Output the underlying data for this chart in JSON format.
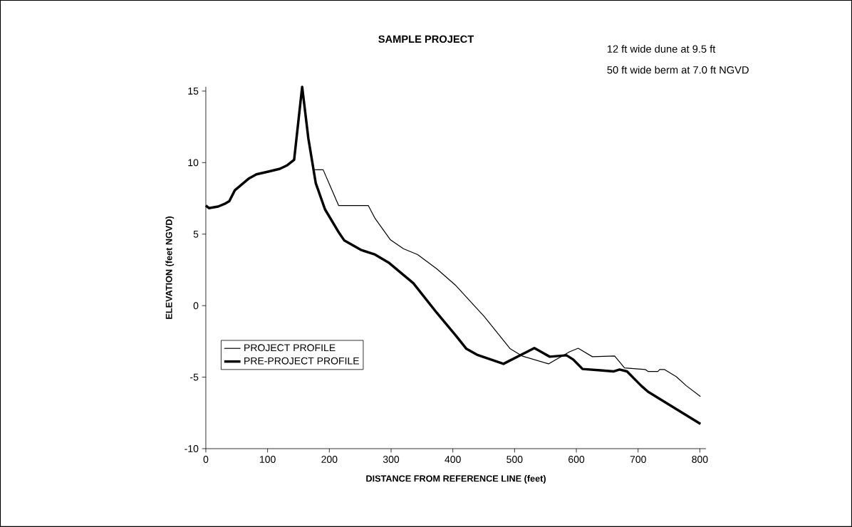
{
  "chart_data": {
    "type": "line",
    "title": "SAMPLE PROJECT",
    "xlabel": "DISTANCE FROM REFERENCE LINE (feet)",
    "ylabel": "ELEVATION (feet NGVD)",
    "annotations": [
      "12 ft wide dune at 9.5 ft",
      "50 ft wide berm at 7.0 ft NGVD"
    ],
    "xlim": [
      0,
      810
    ],
    "ylim": [
      -10,
      15.3
    ],
    "xticks": [
      0,
      100,
      200,
      300,
      400,
      500,
      600,
      700,
      800
    ],
    "yticks": [
      -10,
      -5,
      0,
      5,
      10,
      15
    ],
    "grid": false,
    "legend": "left",
    "marker": "none",
    "line_style": "solid",
    "series": [
      {
        "name": "PROJECT PROFILE",
        "color": "#000000",
        "x": [
          174,
          190,
          215,
          263,
          274,
          299,
          320,
          343,
          374,
          405,
          451,
          493,
          512,
          555,
          589,
          603,
          626,
          662,
          678,
          712,
          716,
          732,
          735,
          743,
          762,
          778,
          801
        ],
        "values": [
          9.5,
          9.5,
          7.0,
          7.0,
          6.1,
          4.6,
          3.98,
          3.57,
          2.57,
          1.4,
          -0.77,
          -3.02,
          -3.52,
          -4.07,
          -3.23,
          -2.98,
          -3.57,
          -3.52,
          -4.35,
          -4.47,
          -4.6,
          -4.6,
          -4.47,
          -4.47,
          -4.97,
          -5.6,
          -6.35
        ]
      },
      {
        "name": "PRE-PROJECT PROFILE",
        "color": "#000000",
        "x": [
          0,
          5,
          20,
          32,
          38,
          47,
          70,
          82,
          101,
          120,
          132,
          143,
          156,
          166,
          178,
          193,
          216,
          224,
          251,
          274,
          297,
          336,
          374,
          405,
          422,
          439,
          482,
          532,
          557,
          584,
          595,
          610,
          639,
          660,
          670,
          682,
          705,
          716,
          754,
          801
        ],
        "values": [
          7.0,
          6.82,
          6.93,
          7.15,
          7.3,
          8.07,
          8.9,
          9.18,
          9.37,
          9.57,
          9.82,
          10.2,
          15.3,
          11.7,
          8.57,
          6.73,
          5.07,
          4.57,
          3.9,
          3.57,
          2.98,
          1.57,
          -0.5,
          -2.1,
          -3.02,
          -3.43,
          -4.07,
          -2.97,
          -3.57,
          -3.47,
          -3.77,
          -4.43,
          -4.52,
          -4.6,
          -4.47,
          -4.6,
          -5.6,
          -6.02,
          -7.02,
          -8.27
        ]
      }
    ]
  }
}
